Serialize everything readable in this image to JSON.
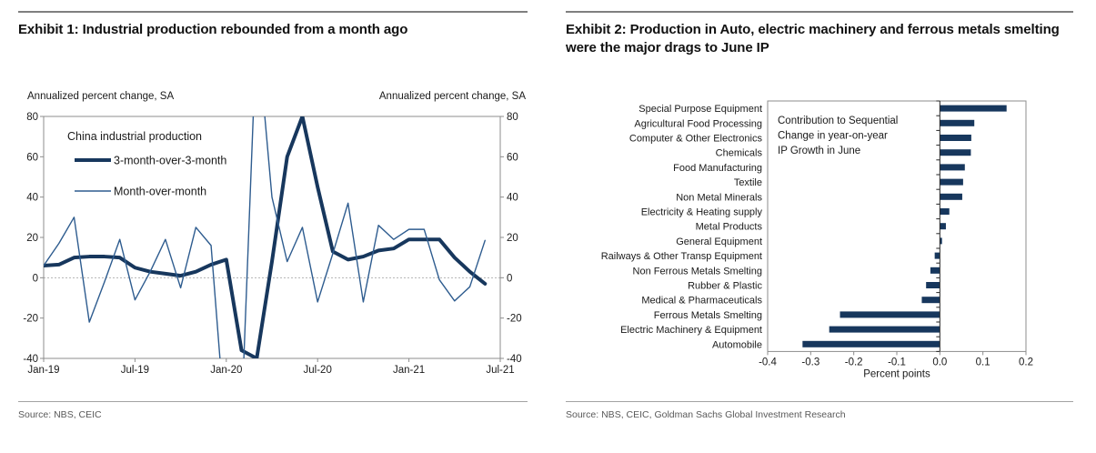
{
  "exhibit1": {
    "title": "Exhibit 1: Industrial production rebounded from a month ago",
    "axis_label_left": "Annualized percent change, SA",
    "axis_label_right": "Annualized percent change, SA",
    "source": "Source: NBS, CEIC"
  },
  "exhibit2": {
    "title": "Exhibit 2: Production in Auto, electric machinery and ferrous metals smelting were the major drags to June IP",
    "source": "Source: NBS, CEIC, Goldman Sachs Global Investment Research"
  },
  "chart_data": [
    {
      "type": "line",
      "legend_title": "China industrial production",
      "x_categories": [
        "Jan-19",
        "Feb-19",
        "Mar-19",
        "Apr-19",
        "May-19",
        "Jun-19",
        "Jul-19",
        "Aug-19",
        "Sep-19",
        "Oct-19",
        "Nov-19",
        "Dec-19",
        "Jan-20",
        "Feb-20",
        "Mar-20",
        "Apr-20",
        "May-20",
        "Jun-20",
        "Jul-20",
        "Aug-20",
        "Sep-20",
        "Oct-20",
        "Nov-20",
        "Dec-20",
        "Jan-21",
        "Feb-21",
        "Mar-21",
        "Apr-21",
        "May-21",
        "Jun-21"
      ],
      "x_axis_ticks": [
        "Jan-19",
        "Jul-19",
        "Jan-20",
        "Jul-20",
        "Jan-21",
        "Jul-21"
      ],
      "ylim": [
        -40,
        80
      ],
      "ytick_step": 20,
      "ylabel_left": "Annualized percent change, SA",
      "ylabel_right": "Annualized percent change, SA",
      "zero_line": true,
      "grid": false,
      "series": [
        {
          "name": "3-month-over-3-month",
          "color": "#17375d",
          "stroke_width": 4,
          "values": [
            6,
            6.5,
            10,
            10.5,
            10.5,
            10,
            5,
            3,
            2,
            1,
            3,
            6.5,
            9,
            -36,
            -40,
            8,
            60,
            80,
            45,
            13,
            9,
            10.5,
            13.5,
            14.5,
            19,
            19,
            19,
            10,
            3,
            -3
          ]
        },
        {
          "name": "Month-over-month",
          "color": "#2e5c8f",
          "stroke_width": 1.4,
          "values": [
            6,
            17,
            30,
            -22,
            -2,
            19,
            -11,
            3,
            19,
            -5,
            25,
            16,
            -80,
            -70,
            125,
            40,
            8,
            25,
            -12,
            12,
            37,
            -12,
            26,
            19,
            24,
            24,
            -1,
            -11.5,
            -4.5,
            18.5
          ]
        }
      ]
    },
    {
      "type": "bar",
      "orientation": "horizontal",
      "annotation_lines": [
        "Contribution to Sequential",
        "Change in year-on-year",
        "IP Growth in June"
      ],
      "xlabel": "Percent points",
      "xlim": [
        -0.4,
        0.2
      ],
      "xticks": [
        -0.4,
        -0.3,
        -0.2,
        -0.1,
        0,
        0.1,
        0.2
      ],
      "bar_color": "#17375d",
      "categories": [
        "Special Purpose Equipment",
        "Agricultural Food Processing",
        "Computer & Other Electronics",
        "Chemicals",
        "Food Manufacturing",
        "Textile",
        "Non Metal Minerals",
        "Electricity & Heating supply",
        "Metal Products",
        "General Equipment",
        "Railways & Other Transp Equipment",
        "Non Ferrous Metals Smelting",
        "Rubber & Plastic",
        "Medical & Pharmaceuticals",
        "Ferrous Metals Smelting",
        "Electric Machinery & Equipment",
        "Automobile"
      ],
      "values": [
        0.155,
        0.08,
        0.073,
        0.072,
        0.058,
        0.054,
        0.052,
        0.022,
        0.014,
        0.005,
        -0.012,
        -0.022,
        -0.032,
        -0.042,
        -0.232,
        -0.257,
        -0.319
      ]
    }
  ]
}
